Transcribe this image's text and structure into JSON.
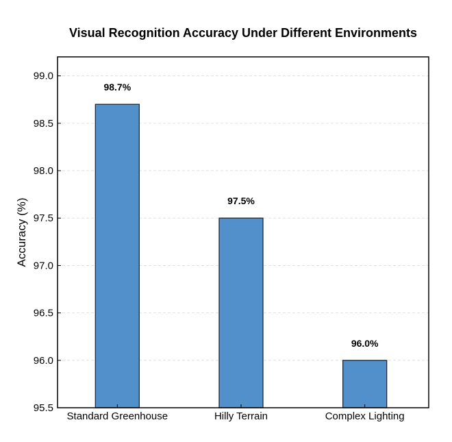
{
  "chart_data": {
    "type": "bar",
    "title": "Visual Recognition Accuracy Under Different Environments",
    "xlabel": "",
    "ylabel": "Accuracy (%)",
    "categories": [
      "Standard Greenhouse",
      "Hilly Terrain",
      "Complex Lighting"
    ],
    "values": [
      98.7,
      97.5,
      96.0
    ],
    "data_labels": [
      "98.7%",
      "97.5%",
      "96.0%"
    ],
    "ylim": [
      95.5,
      99.2
    ],
    "yticks": [
      95.5,
      96.0,
      96.5,
      97.0,
      97.5,
      98.0,
      98.5,
      99.0
    ],
    "ytick_labels": [
      "95.5",
      "96.0",
      "96.5",
      "97.0",
      "97.5",
      "98.0",
      "98.5",
      "99.0"
    ],
    "grid": true,
    "bar_color": "#5190cb",
    "bar_edge_color": "#1b2a3a"
  }
}
